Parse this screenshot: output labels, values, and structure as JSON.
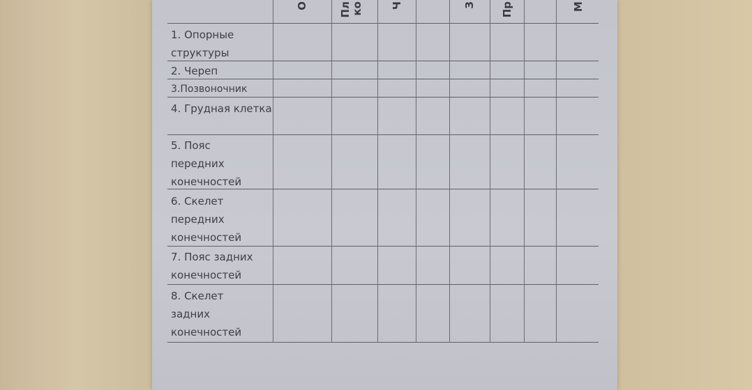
{
  "table": {
    "column_headers": [
      "О",
      "Пл",
      "ко",
      "Ч",
      "",
      "З",
      "Пр",
      "",
      "М"
    ],
    "rows": [
      "1.  Опорные структуры",
      "2. Череп",
      "3.Позвоночник",
      "4. Грудная клетка",
      "5. Пояс передних конечностей",
      "6. Скелет передних конечностей",
      "7. Пояс задних конечностей",
      "8. Скелет задних конечностей"
    ]
  }
}
